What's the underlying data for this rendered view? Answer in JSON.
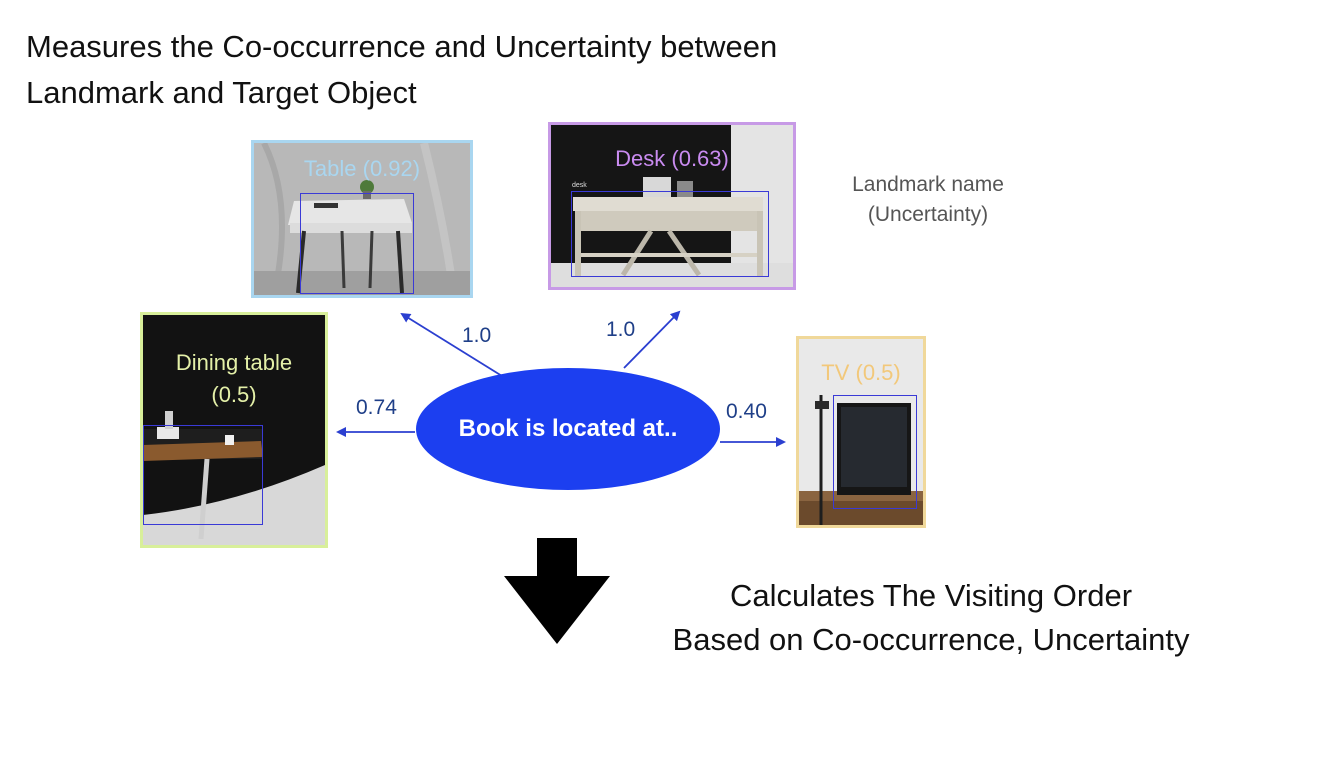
{
  "title": {
    "line1": "Measures the Co-occurrence and Uncertainty between",
    "line2": "Landmark and Target Object"
  },
  "legend": {
    "line1": "Landmark name",
    "line2": "(Uncertainty)"
  },
  "center_node": {
    "label": "Book is located at.."
  },
  "landmarks": [
    {
      "id": "table",
      "label": "Table (0.92)",
      "name": "Table",
      "uncertainty": 0.92,
      "co_occurrence": "1.0",
      "border_color": "#a9d6f0",
      "label_color": "#a9d6f0"
    },
    {
      "id": "desk",
      "label": "Desk (0.63)",
      "name": "Desk",
      "uncertainty": 0.63,
      "co_occurrence": "1.0",
      "border_color": "#c79ae6",
      "label_color": "#c98bf0",
      "bbox_tag": "desk"
    },
    {
      "id": "dining-table",
      "label_line1": "Dining table",
      "label_line2": "(0.5)",
      "name": "Dining table",
      "uncertainty": 0.5,
      "co_occurrence": "0.74",
      "border_color": "#d8ef9a",
      "label_color": "#e4f0a8"
    },
    {
      "id": "tv",
      "label": "TV (0.5)",
      "name": "TV",
      "uncertainty": 0.5,
      "co_occurrence": "0.40",
      "border_color": "#f0d89a",
      "label_color": "#f2c87a"
    }
  ],
  "colors": {
    "edge_arrow": "#2b3fd0",
    "center_node": "#1c3ff0",
    "down_arrow": "#000000"
  },
  "result": {
    "line1": "Calculates The Visiting Order",
    "line2": "Based on Co-occurrence,  Uncertainty"
  }
}
